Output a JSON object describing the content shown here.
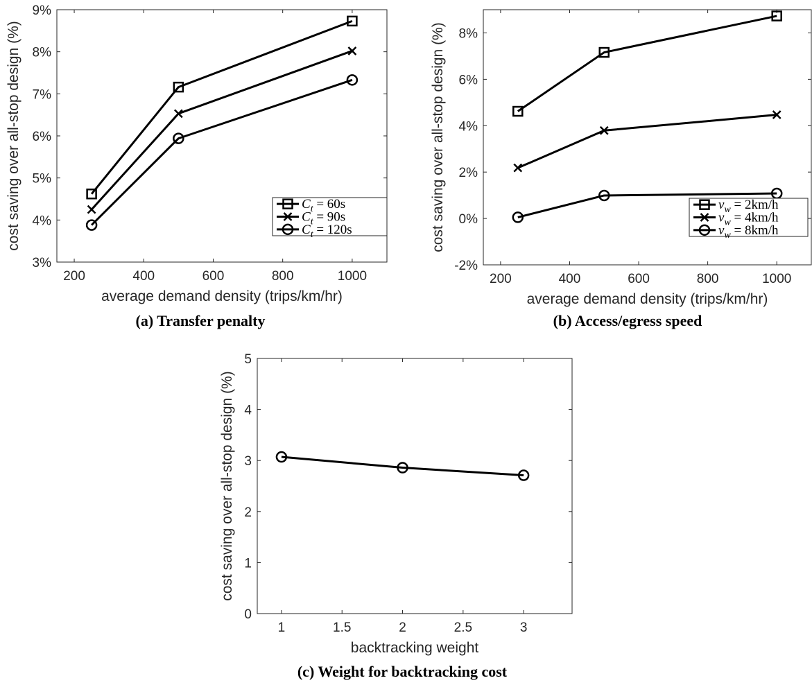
{
  "chart_data": [
    {
      "type": "line",
      "caption": "(a) Transfer penalty",
      "xlabel": "average demand density (trips/km/hr)",
      "ylabel": "cost saving over all-stop design (%)",
      "xlim": [
        150,
        1100
      ],
      "ylim": [
        3,
        9
      ],
      "xticks": [
        200,
        400,
        600,
        800,
        1000
      ],
      "xtick_labels": [
        "200",
        "400",
        "600",
        "800",
        "1000"
      ],
      "yticks": [
        3,
        4,
        5,
        6,
        7,
        8,
        9
      ],
      "ytick_labels": [
        "3%",
        "4%",
        "5%",
        "6%",
        "7%",
        "8%",
        "9%"
      ],
      "legend_position": "bottom-right",
      "x": [
        250,
        500,
        1000
      ],
      "series": [
        {
          "name": "C_t = 60s",
          "marker": "square",
          "values": [
            4.62,
            7.16,
            8.73
          ]
        },
        {
          "name": "C_t = 90s",
          "marker": "x",
          "values": [
            4.25,
            6.53,
            8.02
          ]
        },
        {
          "name": "C_t = 120s",
          "marker": "circle",
          "values": [
            3.88,
            5.94,
            7.33
          ]
        }
      ],
      "legend_labels": [
        {
          "base": "C",
          "sub": "t",
          "rest": " = 60s"
        },
        {
          "base": "C",
          "sub": "t",
          "rest": " = 90s"
        },
        {
          "base": "C",
          "sub": "t",
          "rest": " = 120s"
        }
      ]
    },
    {
      "type": "line",
      "caption": "(b) Access/egress speed",
      "xlabel": "average demand density (trips/km/hr)",
      "ylabel": "cost saving over all-stop design (%)",
      "xlim": [
        150,
        1100
      ],
      "ylim": [
        -2,
        9
      ],
      "xticks": [
        200,
        400,
        600,
        800,
        1000
      ],
      "xtick_labels": [
        "200",
        "400",
        "600",
        "800",
        "1000"
      ],
      "yticks": [
        -2,
        0,
        2,
        4,
        6,
        8
      ],
      "ytick_labels": [
        "-2%",
        "0%",
        "2%",
        "4%",
        "6%",
        "8%"
      ],
      "legend_position": "bottom-right",
      "x": [
        250,
        500,
        1000
      ],
      "series": [
        {
          "name": "v_w = 2km/h",
          "marker": "square",
          "values": [
            4.62,
            7.16,
            8.73
          ]
        },
        {
          "name": "v_w = 4km/h",
          "marker": "x",
          "values": [
            2.18,
            3.79,
            4.47
          ]
        },
        {
          "name": "v_w = 8km/h",
          "marker": "circle",
          "values": [
            0.05,
            0.99,
            1.08
          ]
        }
      ],
      "legend_labels": [
        {
          "base": "v",
          "sub": "w",
          "rest": " = 2km/h"
        },
        {
          "base": "v",
          "sub": "w",
          "rest": " = 4km/h"
        },
        {
          "base": "v",
          "sub": "w",
          "rest": " = 8km/h"
        }
      ]
    },
    {
      "type": "line",
      "caption": "(c) Weight for backtracking cost",
      "xlabel": "backtracking weight",
      "ylabel": "cost saving over all-stop design (%)",
      "xlim": [
        0.8,
        3.4
      ],
      "ylim": [
        0,
        5
      ],
      "xticks": [
        1,
        1.5,
        2,
        2.5,
        3
      ],
      "xtick_labels": [
        "1",
        "1.5",
        "2",
        "2.5",
        "3"
      ],
      "yticks": [
        0,
        1,
        2,
        3,
        4,
        5
      ],
      "ytick_labels": [
        "0",
        "1",
        "2",
        "3",
        "4",
        "5"
      ],
      "x": [
        1,
        2,
        3
      ],
      "series": [
        {
          "marker": "circle",
          "values": [
            3.07,
            2.86,
            2.71
          ]
        }
      ]
    }
  ]
}
